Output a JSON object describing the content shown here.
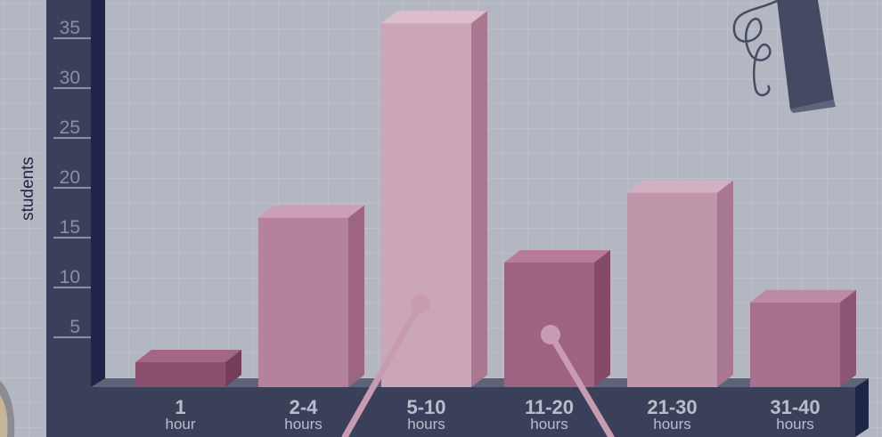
{
  "chart_data": {
    "type": "bar",
    "ylabel": "students",
    "ylim": [
      0,
      37
    ],
    "yticks": [
      5,
      10,
      15,
      20,
      25,
      30,
      35
    ],
    "categories": [
      {
        "value": "1",
        "unit": "hour"
      },
      {
        "value": "2-4",
        "unit": "hours"
      },
      {
        "value": "5-10",
        "unit": "hours"
      },
      {
        "value": "11-20",
        "unit": "hours"
      },
      {
        "value": "21-30",
        "unit": "hours"
      },
      {
        "value": "31-40",
        "unit": "hours"
      }
    ],
    "values": [
      2.5,
      17,
      36.5,
      12.5,
      19.5,
      8.5
    ],
    "bar_colors": [
      {
        "front": "#8c4f6e",
        "side": "#743e5a",
        "top": "#a36683"
      },
      {
        "front": "#b5829d",
        "side": "#9c6683",
        "top": "#cb9fb7"
      },
      {
        "front": "#cba6b8",
        "side": "#a97790",
        "top": "#dbbdcc"
      },
      {
        "front": "#9e6381",
        "side": "#844a67",
        "top": "#b57b97"
      },
      {
        "front": "#c096ab",
        "side": "#a87790",
        "top": "#d3b0c1"
      },
      {
        "front": "#a7708c",
        "side": "#8c5573",
        "top": "#bd8aa4"
      }
    ]
  }
}
